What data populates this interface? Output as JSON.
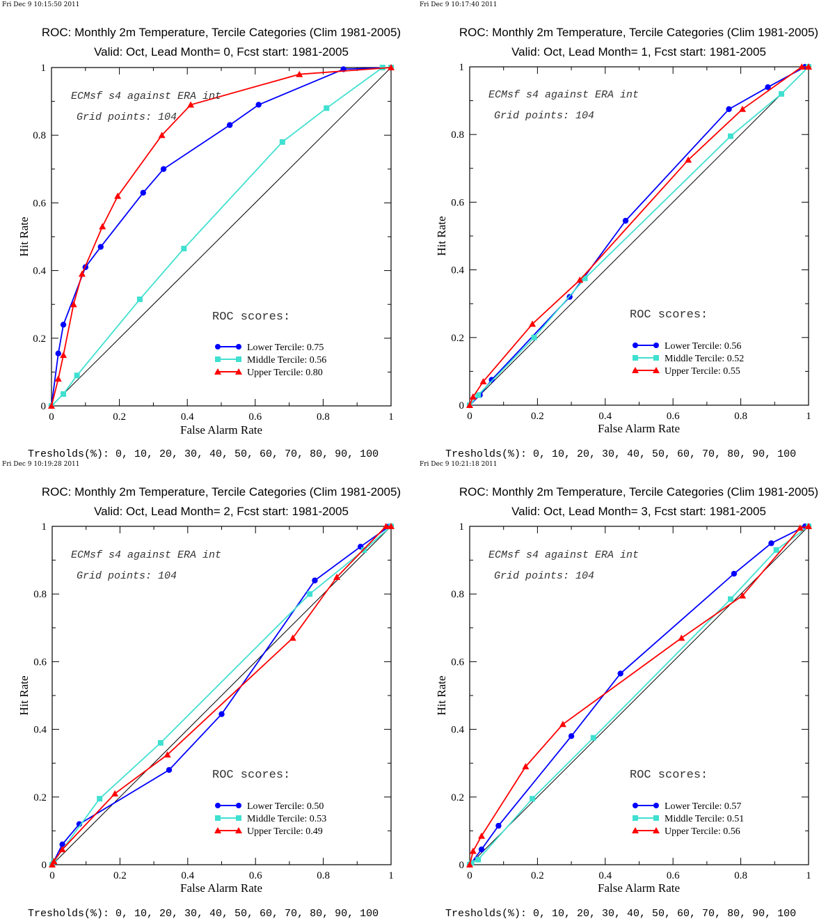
{
  "colors": {
    "lower": "#0000ff",
    "middle": "#40e0d0",
    "upper": "#ff0000",
    "diagonal": "#000000"
  },
  "chart_data": [
    {
      "type": "line",
      "timestamp": "Fri Dec  9 10:15:50 2011",
      "title": "ROC: Monthly 2m Temperature, Tercile Categories (Clim 1981-2005)",
      "subtitle": "Valid: Oct, Lead Month= 0, Fcst start: 1981-2005",
      "xlabel": "False Alarm Rate",
      "ylabel": "Hit Rate",
      "xlim": [
        0,
        1
      ],
      "ylim": [
        0,
        1
      ],
      "xticks": [
        "0",
        "0.2",
        "0.4",
        "0.6",
        "0.8",
        "1"
      ],
      "yticks": [
        "0",
        "0.2",
        "0.4",
        "0.6",
        "0.8",
        "1"
      ],
      "annotation1": "ECMsf s4 against ERA int",
      "annotation2": "Grid points:  104",
      "roc_header": "ROC scores:",
      "footer": "Tresholds(%): 0, 10, 20, 30, 40, 50, 60, 70, 80, 90, 100",
      "series": [
        {
          "name": "Lower Tercile: 0.75",
          "marker": "circle",
          "color_key": "lower",
          "x": [
            0,
            0.02,
            0.035,
            0.1,
            0.145,
            0.27,
            0.33,
            0.525,
            0.61,
            0.86,
            1
          ],
          "y": [
            0,
            0.155,
            0.24,
            0.41,
            0.47,
            0.63,
            0.7,
            0.83,
            0.89,
            0.995,
            1
          ]
        },
        {
          "name": "Middle Tercile: 0.56",
          "marker": "square",
          "color_key": "middle",
          "x": [
            0,
            0.035,
            0.075,
            0.26,
            0.39,
            0.68,
            0.81,
            0.975,
            1
          ],
          "y": [
            0,
            0.035,
            0.09,
            0.315,
            0.465,
            0.78,
            0.88,
            1.0,
            1
          ]
        },
        {
          "name": "Upper Tercile: 0.80",
          "marker": "triangle",
          "color_key": "upper",
          "x": [
            0,
            0.02,
            0.035,
            0.065,
            0.09,
            0.15,
            0.195,
            0.325,
            0.41,
            0.73,
            1
          ],
          "y": [
            0,
            0.08,
            0.15,
            0.3,
            0.39,
            0.53,
            0.62,
            0.8,
            0.89,
            0.98,
            1
          ]
        }
      ]
    },
    {
      "type": "line",
      "timestamp": "Fri Dec  9 10:17:40 2011",
      "title": "ROC: Monthly 2m Temperature, Tercile Categories (Clim 1981-2005)",
      "subtitle": "Valid: Oct, Lead Month= 1, Fcst start: 1981-2005",
      "xlabel": "False Alarm Rate",
      "ylabel": "Hit Rate",
      "xlim": [
        0,
        1
      ],
      "ylim": [
        0,
        1
      ],
      "xticks": [
        "0",
        "0.2",
        "0.4",
        "0.6",
        "0.8",
        "1"
      ],
      "yticks": [
        "0",
        "0.2",
        "0.4",
        "0.6",
        "0.8",
        "1"
      ],
      "annotation1": "ECMsf s4 against ERA int",
      "annotation2": "Grid points:  104",
      "roc_header": "ROC scores:",
      "footer": "Tresholds(%): 0, 10, 20, 30, 40, 50, 60, 70, 80, 90, 100",
      "series": [
        {
          "name": "Lower Tercile: 0.56",
          "marker": "circle",
          "color_key": "lower",
          "x": [
            0,
            0.03,
            0.065,
            0.295,
            0.46,
            0.765,
            0.88,
            0.99,
            1
          ],
          "y": [
            0,
            0.03,
            0.075,
            0.32,
            0.545,
            0.875,
            0.94,
            1.0,
            1
          ]
        },
        {
          "name": "Middle Tercile: 0.52",
          "marker": "square",
          "color_key": "middle",
          "x": [
            0,
            0.025,
            0.19,
            0.34,
            0.77,
            0.92,
            1
          ],
          "y": [
            0,
            0.03,
            0.2,
            0.375,
            0.795,
            0.92,
            1
          ]
        },
        {
          "name": "Upper Tercile: 0.55",
          "marker": "triangle",
          "color_key": "upper",
          "x": [
            0,
            0.01,
            0.04,
            0.185,
            0.325,
            0.645,
            0.805,
            0.98,
            1
          ],
          "y": [
            0,
            0.025,
            0.07,
            0.24,
            0.37,
            0.725,
            0.875,
            1.0,
            1
          ]
        }
      ]
    },
    {
      "type": "line",
      "timestamp": "Fri Dec  9 10:19:28 2011",
      "title": "ROC: Monthly 2m Temperature, Tercile Categories (Clim 1981-2005)",
      "subtitle": "Valid: Oct, Lead Month= 2, Fcst start: 1981-2005",
      "xlabel": "False Alarm Rate",
      "ylabel": "Hit Rate",
      "xlim": [
        0,
        1
      ],
      "ylim": [
        0,
        1
      ],
      "xticks": [
        "0",
        "0.2",
        "0.4",
        "0.6",
        "0.8",
        "1"
      ],
      "yticks": [
        "0",
        "0.2",
        "0.4",
        "0.6",
        "0.8",
        "1"
      ],
      "annotation1": "ECMsf s4 against ERA int",
      "annotation2": "Grid points:  104",
      "roc_header": "ROC scores:",
      "footer": "Tresholds(%): 0, 10, 20, 30, 40, 50, 60, 70, 80, 90, 100",
      "series": [
        {
          "name": "Lower Tercile: 0.50",
          "marker": "circle",
          "color_key": "lower",
          "x": [
            0,
            0.005,
            0.03,
            0.08,
            0.345,
            0.5,
            0.775,
            0.91,
            0.995,
            1
          ],
          "y": [
            0,
            0.01,
            0.06,
            0.12,
            0.28,
            0.445,
            0.84,
            0.94,
            1.0,
            1
          ]
        },
        {
          "name": "Middle Tercile: 0.53",
          "marker": "square",
          "color_key": "middle",
          "x": [
            0,
            0.005,
            0.14,
            0.32,
            0.76,
            0.92,
            1
          ],
          "y": [
            0,
            0.01,
            0.195,
            0.36,
            0.8,
            0.93,
            1
          ]
        },
        {
          "name": "Upper Tercile: 0.49",
          "marker": "triangle",
          "color_key": "upper",
          "x": [
            0,
            0.005,
            0.03,
            0.185,
            0.34,
            0.71,
            0.84,
            0.985,
            1
          ],
          "y": [
            0,
            0.01,
            0.045,
            0.21,
            0.325,
            0.67,
            0.85,
            1.0,
            1
          ]
        }
      ]
    },
    {
      "type": "line",
      "timestamp": "Fri Dec  9 10:21:18 2011",
      "title": "ROC: Monthly 2m Temperature, Tercile Categories (Clim 1981-2005)",
      "subtitle": "Valid: Oct, Lead Month= 3, Fcst start: 1981-2005",
      "xlabel": "False Alarm Rate",
      "ylabel": "Hit Rate",
      "xlim": [
        0,
        1
      ],
      "ylim": [
        0,
        1
      ],
      "xticks": [
        "0",
        "0.2",
        "0.4",
        "0.6",
        "0.8",
        "1"
      ],
      "yticks": [
        "0",
        "0.2",
        "0.4",
        "0.6",
        "0.8",
        "1"
      ],
      "annotation1": "ECMsf s4 against ERA int",
      "annotation2": "Grid points:  104",
      "roc_header": "ROC scores:",
      "footer": "Tresholds(%): 0, 10, 20, 30, 40, 50, 60, 70, 80, 90, 100",
      "series": [
        {
          "name": "Lower Tercile: 0.57",
          "marker": "circle",
          "color_key": "lower",
          "x": [
            0,
            0.005,
            0.035,
            0.085,
            0.3,
            0.445,
            0.78,
            0.89,
            0.99,
            1
          ],
          "y": [
            0,
            0.005,
            0.045,
            0.115,
            0.38,
            0.565,
            0.86,
            0.95,
            1.0,
            1
          ]
        },
        {
          "name": "Middle Tercile: 0.51",
          "marker": "square",
          "color_key": "middle",
          "x": [
            0,
            0.005,
            0.025,
            0.185,
            0.365,
            0.77,
            0.905,
            1
          ],
          "y": [
            0,
            0.005,
            0.015,
            0.195,
            0.375,
            0.785,
            0.93,
            1
          ]
        },
        {
          "name": "Upper Tercile: 0.56",
          "marker": "triangle",
          "color_key": "upper",
          "x": [
            0,
            0.01,
            0.035,
            0.165,
            0.275,
            0.625,
            0.805,
            0.975,
            1
          ],
          "y": [
            0,
            0.04,
            0.085,
            0.29,
            0.415,
            0.67,
            0.795,
            0.995,
            1
          ]
        }
      ]
    }
  ]
}
